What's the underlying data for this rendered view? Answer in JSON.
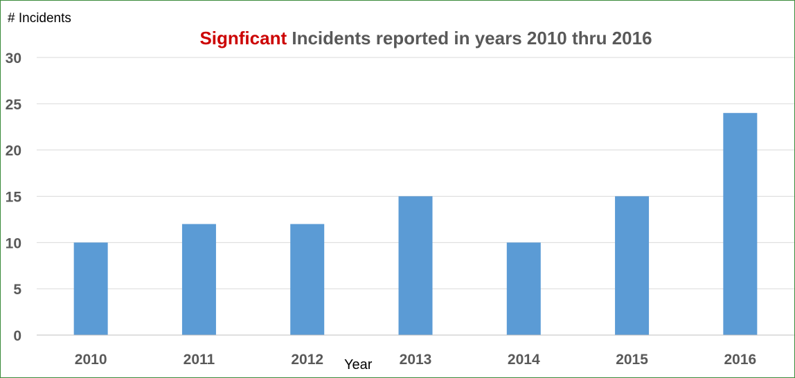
{
  "chart_data": {
    "type": "bar",
    "title_highlight": "Signficant",
    "title": "Incidents reported in years 2010 thru 2016",
    "xlabel": "Year",
    "ylabel": "# Incidents",
    "categories": [
      "2010",
      "2011",
      "2012",
      "2013",
      "2014",
      "2015",
      "2016"
    ],
    "values": [
      10,
      12,
      12,
      15,
      10,
      15,
      24
    ],
    "ylim": [
      0,
      30
    ],
    "yticks": [
      "0",
      "5",
      "10",
      "15",
      "20",
      "25",
      "30"
    ],
    "grid": true,
    "legend": "none",
    "bar_color": "#5b9bd5"
  }
}
